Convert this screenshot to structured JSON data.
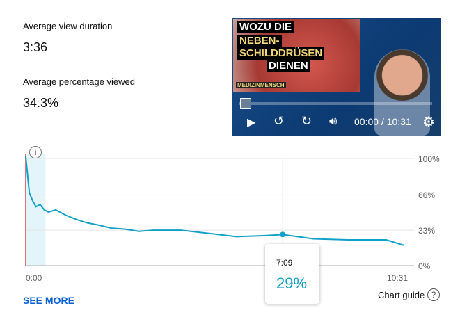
{
  "metrics": [
    {
      "label": "Average view duration",
      "value": "3:36"
    },
    {
      "label": "Average percentage viewed",
      "value": "34.3%"
    }
  ],
  "video": {
    "title_lines": [
      "WOZU DIE",
      "NEBEN-",
      "SCHILDDRÜSEN",
      "DIENEN"
    ],
    "brand": "MEDIZINMENSCH",
    "time": "00:00 / 10:31"
  },
  "chart_data": {
    "type": "line",
    "xlabel": "",
    "ylabel": "",
    "x_unit": "seconds",
    "x_range": [
      0,
      631
    ],
    "ylim": [
      0,
      100
    ],
    "y_ticks": [
      "100%",
      "66%",
      "33%",
      "0%"
    ],
    "x_ticks": [
      "0:00",
      "10:31"
    ],
    "points": [
      [
        0,
        102
      ],
      [
        6,
        68
      ],
      [
        12,
        60
      ],
      [
        17,
        55
      ],
      [
        24,
        57
      ],
      [
        31,
        52
      ],
      [
        38,
        50
      ],
      [
        50,
        52
      ],
      [
        67,
        47
      ],
      [
        85,
        43
      ],
      [
        102,
        40
      ],
      [
        120,
        38
      ],
      [
        143,
        35
      ],
      [
        166,
        34
      ],
      [
        189,
        32
      ],
      [
        213,
        33
      ],
      [
        259,
        33
      ],
      [
        306,
        30
      ],
      [
        352,
        27
      ],
      [
        399,
        28
      ],
      [
        429,
        29
      ],
      [
        480,
        25
      ],
      [
        538,
        24
      ],
      [
        602,
        24
      ],
      [
        631,
        19
      ]
    ],
    "highlight_range": [
      0,
      33
    ],
    "color": "#11a0c8"
  },
  "tooltip": {
    "time": "7:09",
    "value": "29%",
    "x": 429
  },
  "links": {
    "see_more": "SEE MORE",
    "chart_guide": "Chart guide"
  }
}
